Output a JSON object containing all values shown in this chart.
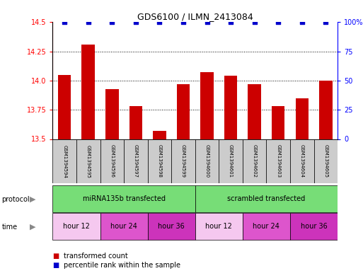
{
  "title": "GDS6100 / ILMN_2413084",
  "samples": [
    "GSM1394594",
    "GSM1394595",
    "GSM1394596",
    "GSM1394597",
    "GSM1394598",
    "GSM1394599",
    "GSM1394600",
    "GSM1394601",
    "GSM1394602",
    "GSM1394603",
    "GSM1394604",
    "GSM1394605"
  ],
  "bar_values": [
    14.05,
    14.31,
    13.93,
    13.78,
    13.57,
    13.97,
    14.07,
    14.04,
    13.97,
    13.78,
    13.85,
    14.0
  ],
  "bar_color": "#cc0000",
  "percentile_color": "#0000cc",
  "ylim_left": [
    13.5,
    14.5
  ],
  "ylim_right": [
    0,
    100
  ],
  "yticks_left": [
    13.5,
    13.75,
    14.0,
    14.25,
    14.5
  ],
  "yticks_right": [
    0,
    25,
    50,
    75,
    100
  ],
  "ytick_labels_right": [
    "0",
    "25",
    "50",
    "75",
    "100%"
  ],
  "protocol_labels": [
    "miRNA135b transfected",
    "scrambled transfected"
  ],
  "protocol_color": "#77dd77",
  "time_labels": [
    "hour 12",
    "hour 24",
    "hour 36",
    "hour 12",
    "hour 24",
    "hour 36"
  ],
  "time_colors": [
    "#f8c8f0",
    "#dd66dd",
    "#dd44cc",
    "#f8c8f0",
    "#dd66dd",
    "#dd44cc"
  ],
  "legend_items": [
    {
      "label": "transformed count",
      "color": "#cc0000"
    },
    {
      "label": "percentile rank within the sample",
      "color": "#0000cc"
    }
  ],
  "bg_color": "#ffffff"
}
